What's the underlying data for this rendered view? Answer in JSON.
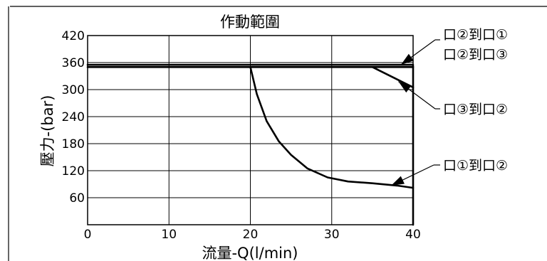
{
  "chart_data": {
    "type": "line",
    "title": "作動範圍",
    "xlabel": "流量-Q(l/min)",
    "ylabel": "壓力-(bar)",
    "xlim": [
      0,
      40
    ],
    "ylim": [
      0,
      420
    ],
    "x_ticks": [
      "0",
      "10",
      "20",
      "30",
      "40"
    ],
    "y_ticks": [
      "420",
      "360",
      "300",
      "240",
      "180",
      "120",
      "60"
    ],
    "grid": true,
    "series": [
      {
        "name": "口②到口①",
        "x": [
          0,
          40
        ],
        "y": [
          355,
          355
        ]
      },
      {
        "name": "口②到口③",
        "x": [
          0,
          40
        ],
        "y": [
          350,
          350
        ]
      },
      {
        "name": "口③到口②",
        "x": [
          35,
          40
        ],
        "y": [
          350,
          305
        ]
      },
      {
        "name": "口①到口②",
        "x": [
          20,
          20.8,
          22,
          23.5,
          25,
          27,
          29.5,
          32,
          35,
          38,
          40
        ],
        "y": [
          350,
          290,
          230,
          185,
          155,
          125,
          105,
          96,
          92,
          87,
          82
        ]
      }
    ],
    "annotations": [
      {
        "text": "口②到口①",
        "target": [
          38.5,
          355
        ]
      },
      {
        "text": "口②到口③",
        "target": [
          38.5,
          352
        ]
      },
      {
        "text": "口③到口②",
        "target": [
          38.2,
          318
        ]
      },
      {
        "text": "口①到口②",
        "target": [
          37.3,
          87
        ]
      }
    ],
    "end_line": {
      "x": 40,
      "y": [
        0,
        352
      ]
    }
  }
}
